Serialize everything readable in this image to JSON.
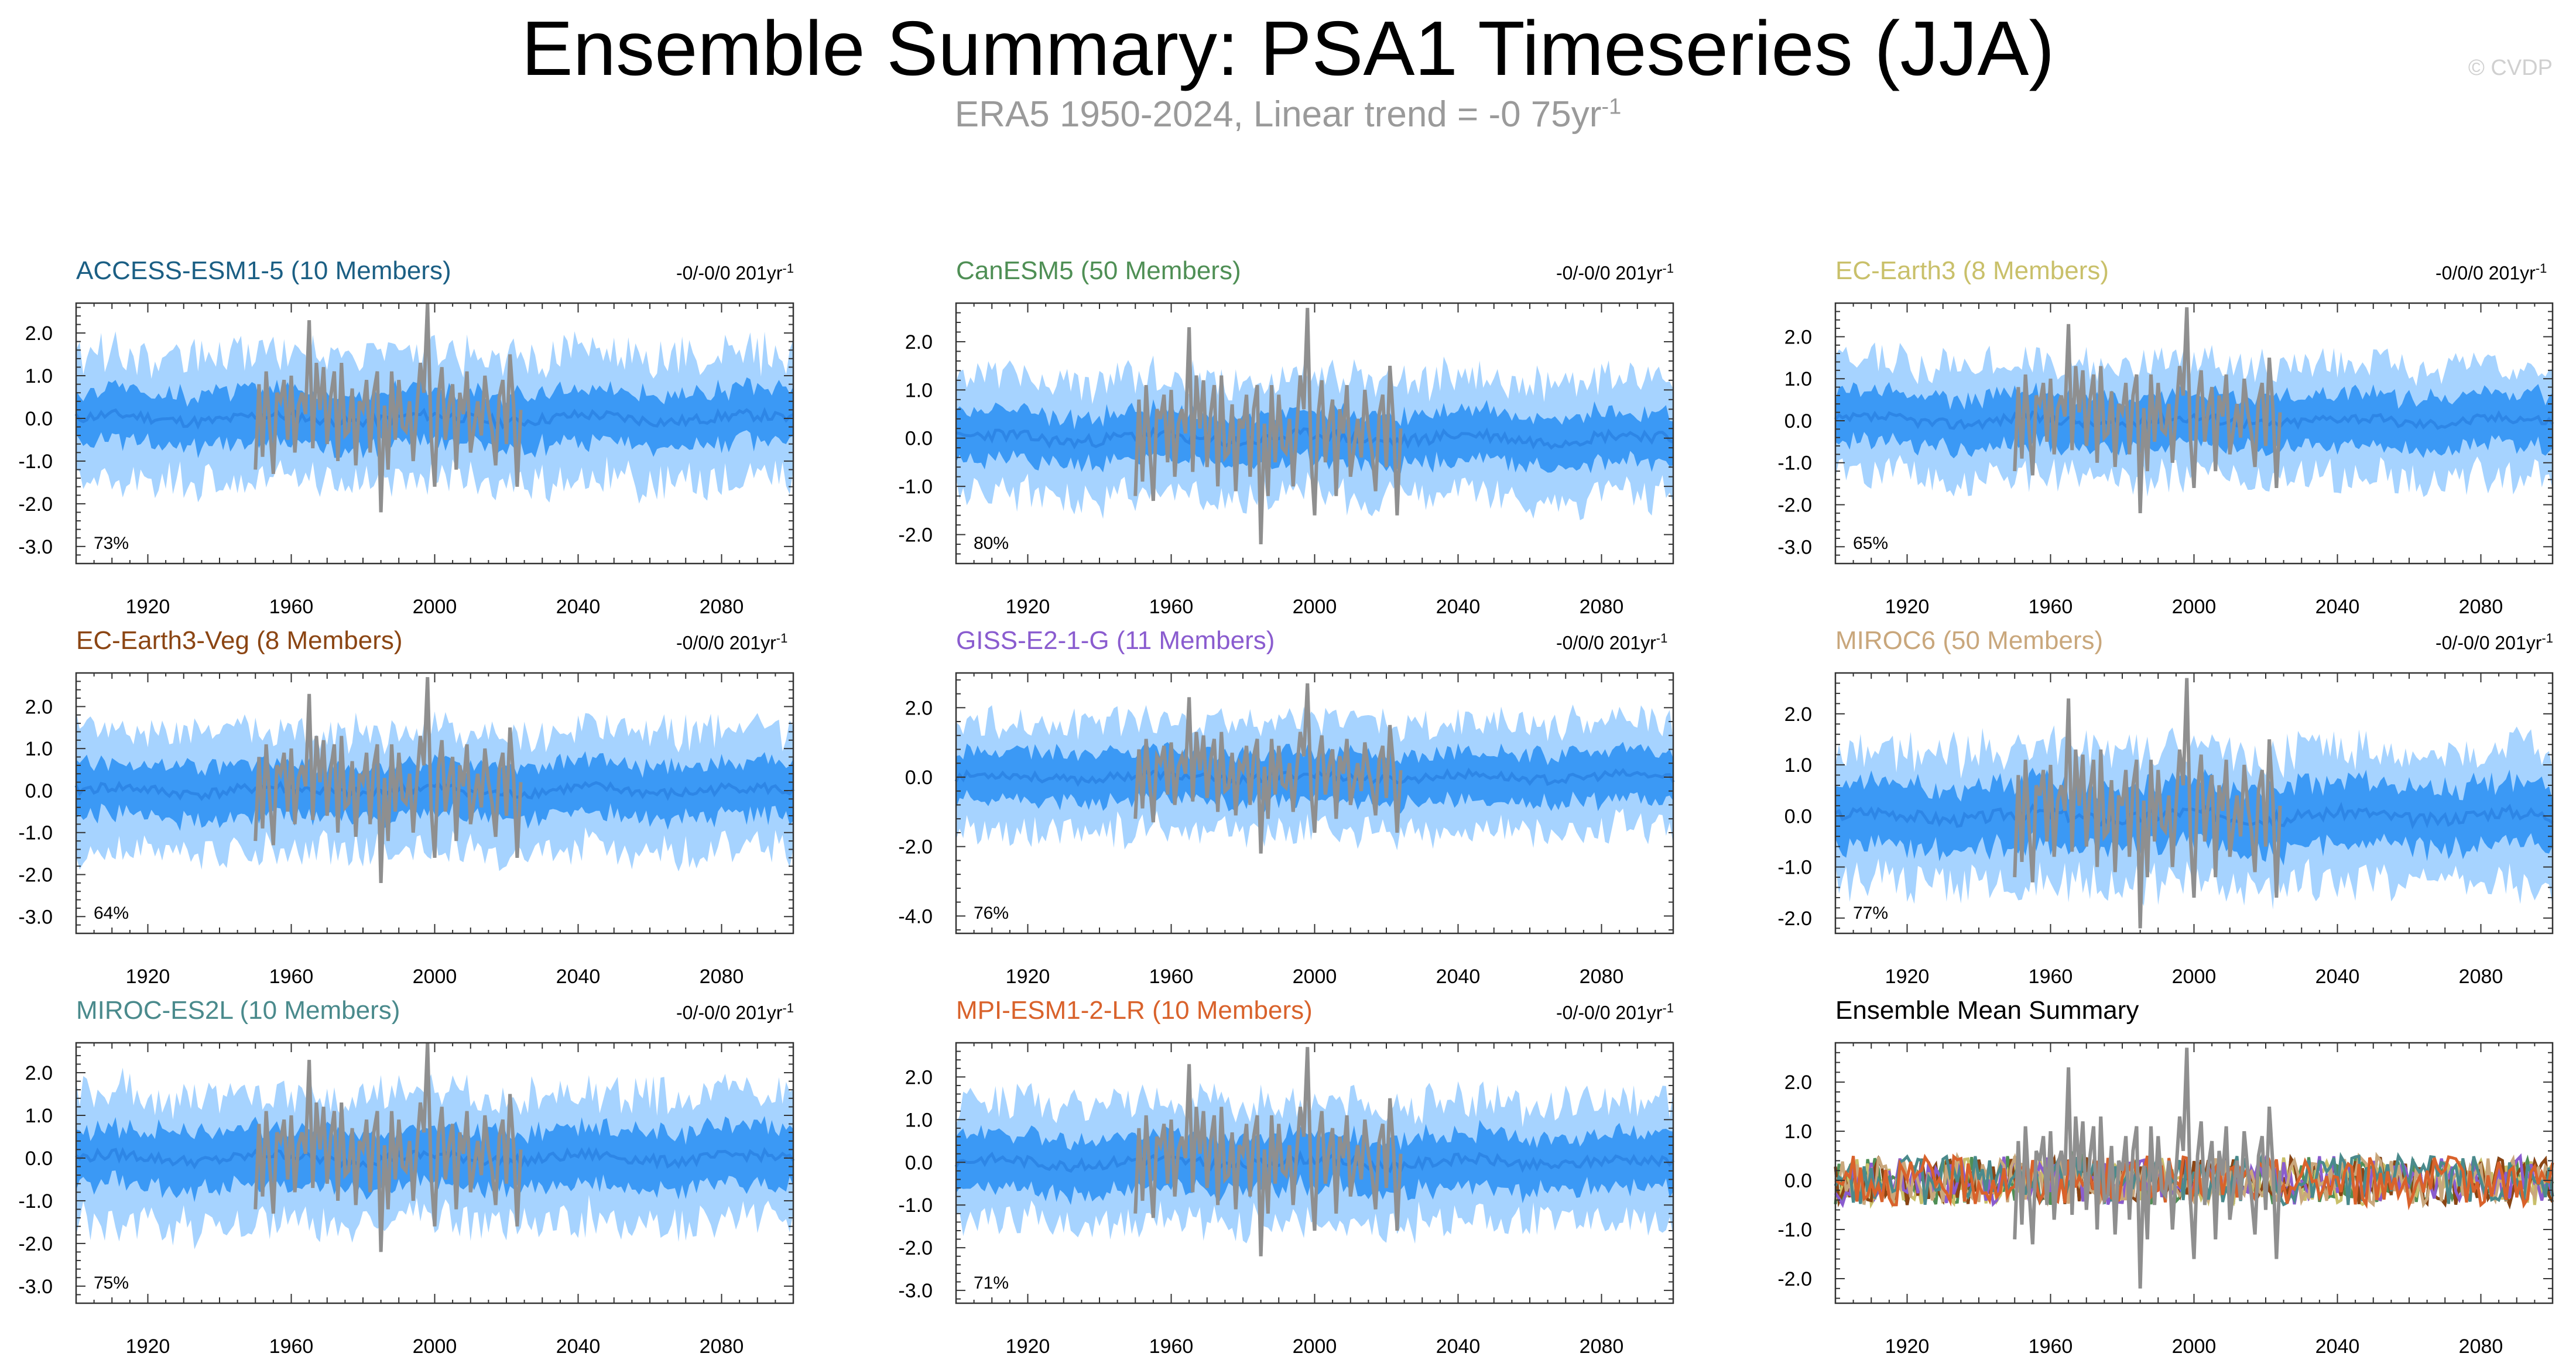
{
  "header": {
    "title": "Ensemble Summary: PSA1 Timeseries (JJA)",
    "subtitle": "ERA5 1950-2024, Linear trend = -0 75yr",
    "subtitle_sup": "-1",
    "copyright": "© CVDP"
  },
  "colors": {
    "spread_outer": "#a6d3ff",
    "spread_inner": "#3b99f5",
    "ensemble_mean": "#2d86e6",
    "observations": "#8f8f8f"
  },
  "chart_data": [
    {
      "type": "area",
      "name": "ACCESS-ESM1-5",
      "title": "ACCESS-ESM1-5 (10 Members)",
      "title_color": "#1b5f84",
      "trend": "-0/-0/0 201yr",
      "trend_sup": "-1",
      "percent": "73%",
      "ylim": [
        -3.4,
        2.7
      ],
      "yticks": [
        -3.0,
        -2.0,
        -1.0,
        0.0,
        1.0,
        2.0
      ],
      "ytick_labels": [
        "-3.0",
        "-2.0",
        "-1.0",
        "0.0",
        "1.0",
        "2.0"
      ],
      "xlim": [
        1900,
        2100
      ],
      "xticks": [
        1920,
        1960,
        2000,
        2040,
        2080
      ],
      "outer": 1.45,
      "inner": 0.62,
      "seed": 11
    },
    {
      "type": "area",
      "name": "CanESM5",
      "title": "CanESM5 (50 Members)",
      "title_color": "#4f8f55",
      "trend": "-0/-0/0 201yr",
      "trend_sup": "-1",
      "percent": "80%",
      "ylim": [
        -2.6,
        2.8
      ],
      "yticks": [
        -2.0,
        -1.0,
        0.0,
        1.0,
        2.0
      ],
      "ytick_labels": [
        "-2.0",
        "-1.0",
        "0.0",
        "1.0",
        "2.0"
      ],
      "xlim": [
        1900,
        2100
      ],
      "xticks": [
        1920,
        1960,
        2000,
        2040,
        2080
      ],
      "outer": 1.2,
      "inner": 0.5,
      "seed": 23
    },
    {
      "type": "area",
      "name": "EC-Earth3",
      "title": "EC-Earth3 (8 Members)",
      "title_color": "#c9c06a",
      "trend": "-0/0/0 201yr",
      "trend_sup": "-1",
      "percent": "65%",
      "ylim": [
        -3.4,
        2.8
      ],
      "yticks": [
        -3.0,
        -2.0,
        -1.0,
        0.0,
        1.0,
        2.0
      ],
      "ytick_labels": [
        "-3.0",
        "-2.0",
        "-1.0",
        "0.0",
        "1.0",
        "2.0"
      ],
      "xlim": [
        1900,
        2100
      ],
      "xticks": [
        1920,
        1960,
        2000,
        2040,
        2080
      ],
      "outer": 1.35,
      "inner": 0.6,
      "seed": 37
    },
    {
      "type": "area",
      "name": "EC-Earth3-Veg",
      "title": "EC-Earth3-Veg (8 Members)",
      "title_color": "#8b4513",
      "trend": "-0/0/0 201yr",
      "trend_sup": "-1",
      "percent": "64%",
      "ylim": [
        -3.4,
        2.8
      ],
      "yticks": [
        -3.0,
        -2.0,
        -1.0,
        0.0,
        1.0,
        2.0
      ],
      "ytick_labels": [
        "-3.0",
        "-2.0",
        "-1.0",
        "0.0",
        "1.0",
        "2.0"
      ],
      "xlim": [
        1900,
        2100
      ],
      "xticks": [
        1920,
        1960,
        2000,
        2040,
        2080
      ],
      "outer": 1.4,
      "inner": 0.62,
      "seed": 41
    },
    {
      "type": "area",
      "name": "GISS-E2-1-G",
      "title": "GISS-E2-1-G (11 Members)",
      "title_color": "#8a5ccf",
      "trend": "-0/0/0 201yr",
      "trend_sup": "-1",
      "percent": "76%",
      "ylim": [
        -4.5,
        3.0
      ],
      "yticks": [
        -4.0,
        -2.0,
        0.0,
        2.0
      ],
      "ytick_labels": [
        "-4.0",
        "-2.0",
        "0.0",
        "2.0"
      ],
      "xlim": [
        1900,
        2100
      ],
      "xticks": [
        1920,
        1960,
        2000,
        2040,
        2080
      ],
      "outer": 1.55,
      "inner": 0.7,
      "seed": 53
    },
    {
      "type": "area",
      "name": "MIROC6",
      "title": "MIROC6 (50 Members)",
      "title_color": "#c9a77c",
      "trend": "-0/-0/0 201yr",
      "trend_sup": "-1",
      "percent": "77%",
      "ylim": [
        -2.3,
        2.8
      ],
      "yticks": [
        -2.0,
        -1.0,
        0.0,
        1.0,
        2.0
      ],
      "ytick_labels": [
        "-2.0",
        "-1.0",
        "0.0",
        "1.0",
        "2.0"
      ],
      "xlim": [
        1900,
        2100
      ],
      "xticks": [
        1920,
        1960,
        2000,
        2040,
        2080
      ],
      "outer": 1.3,
      "inner": 0.6,
      "seed": 67
    },
    {
      "type": "area",
      "name": "MIROC-ES2L",
      "title": "MIROC-ES2L (10 Members)",
      "title_color": "#4a8a8c",
      "trend": "-0/-0/0 201yr",
      "trend_sup": "-1",
      "percent": "75%",
      "ylim": [
        -3.4,
        2.7
      ],
      "yticks": [
        -3.0,
        -2.0,
        -1.0,
        0.0,
        1.0,
        2.0
      ],
      "ytick_labels": [
        "-3.0",
        "-2.0",
        "-1.0",
        "0.0",
        "1.0",
        "2.0"
      ],
      "xlim": [
        1900,
        2100
      ],
      "xticks": [
        1920,
        1960,
        2000,
        2040,
        2080
      ],
      "outer": 1.5,
      "inner": 0.65,
      "seed": 79
    },
    {
      "type": "area",
      "name": "MPI-ESM1-2-LR",
      "title": "MPI-ESM1-2-LR (10 Members)",
      "title_color": "#d9622b",
      "trend": "-0/-0/0 201yr",
      "trend_sup": "-1",
      "percent": "71%",
      "ylim": [
        -3.3,
        2.8
      ],
      "yticks": [
        -3.0,
        -2.0,
        -1.0,
        0.0,
        1.0,
        2.0
      ],
      "ytick_labels": [
        "-3.0",
        "-2.0",
        "-1.0",
        "0.0",
        "1.0",
        "2.0"
      ],
      "xlim": [
        1900,
        2100
      ],
      "xticks": [
        1920,
        1960,
        2000,
        2040,
        2080
      ],
      "outer": 1.4,
      "inner": 0.62,
      "seed": 83
    },
    {
      "type": "line",
      "name": "Ensemble Mean Summary",
      "title": "Ensemble Mean Summary",
      "title_color": "#000000",
      "ylim": [
        -2.5,
        2.8
      ],
      "yticks": [
        -2.0,
        -1.0,
        0.0,
        1.0,
        2.0
      ],
      "ytick_labels": [
        "-2.0",
        "-1.0",
        "0.0",
        "1.0",
        "2.0"
      ],
      "xlim": [
        1900,
        2100
      ],
      "xticks": [
        1920,
        1960,
        2000,
        2040,
        2080
      ],
      "series": [
        {
          "name": "ACCESS-ESM1-5",
          "color": "#1b5f84"
        },
        {
          "name": "CanESM5",
          "color": "#4f8f55"
        },
        {
          "name": "EC-Earth3",
          "color": "#c9c06a"
        },
        {
          "name": "EC-Earth3-Veg",
          "color": "#8b4513"
        },
        {
          "name": "GISS-E2-1-G",
          "color": "#8a5ccf"
        },
        {
          "name": "MIROC6",
          "color": "#c9a77c"
        },
        {
          "name": "MIROC-ES2L",
          "color": "#4a8a8c"
        },
        {
          "name": "MPI-ESM1-2-LR",
          "color": "#d9622b"
        }
      ],
      "seed": 97
    }
  ],
  "observations": {
    "name": "ERA5",
    "years": [
      1950,
      1951,
      1952,
      1953,
      1954,
      1955,
      1956,
      1957,
      1958,
      1959,
      1960,
      1961,
      1962,
      1963,
      1964,
      1965,
      1966,
      1967,
      1968,
      1969,
      1970,
      1971,
      1972,
      1973,
      1974,
      1975,
      1976,
      1977,
      1978,
      1979,
      1980,
      1981,
      1982,
      1983,
      1984,
      1985,
      1986,
      1987,
      1988,
      1989,
      1990,
      1991,
      1992,
      1993,
      1994,
      1995,
      1996,
      1997,
      1998,
      1999,
      2000,
      2001,
      2002,
      2003,
      2004,
      2005,
      2006,
      2007,
      2008,
      2009,
      2010,
      2011,
      2012,
      2013,
      2014,
      2015,
      2016,
      2017,
      2018,
      2019,
      2020,
      2021,
      2022,
      2023,
      2024
    ],
    "values": [
      -1.2,
      0.8,
      -0.9,
      1.1,
      -0.2,
      -1.3,
      0.6,
      0.4,
      0.9,
      -0.5,
      1.0,
      -0.8,
      0.3,
      0.6,
      0.1,
      2.3,
      -0.7,
      1.3,
      0.2,
      1.2,
      -0.6,
      0.5,
      1.1,
      -1.0,
      1.3,
      -0.4,
      -0.3,
      0.7,
      -1.1,
      0.4,
      0.2,
      0.9,
      -0.8,
      0.6,
      1.1,
      -2.2,
      0.3,
      -1.2,
      1.1,
      -0.5,
      0.9,
      -0.2,
      -0.3,
      0.4,
      -1.0,
      0.2,
      1.3,
      0.6,
      2.7,
      -0.4,
      -1.6,
      0.5,
      1.2,
      -0.5,
      0.3,
      0.8,
      -1.2,
      0.6,
      0.1,
      1.1,
      -0.8,
      -0.2,
      0.4,
      -0.4,
      1.0,
      0.2,
      -0.3,
      -1.1,
      0.5,
      0.9,
      -0.6,
      1.5,
      0.3,
      -1.6,
      0.2
    ]
  }
}
